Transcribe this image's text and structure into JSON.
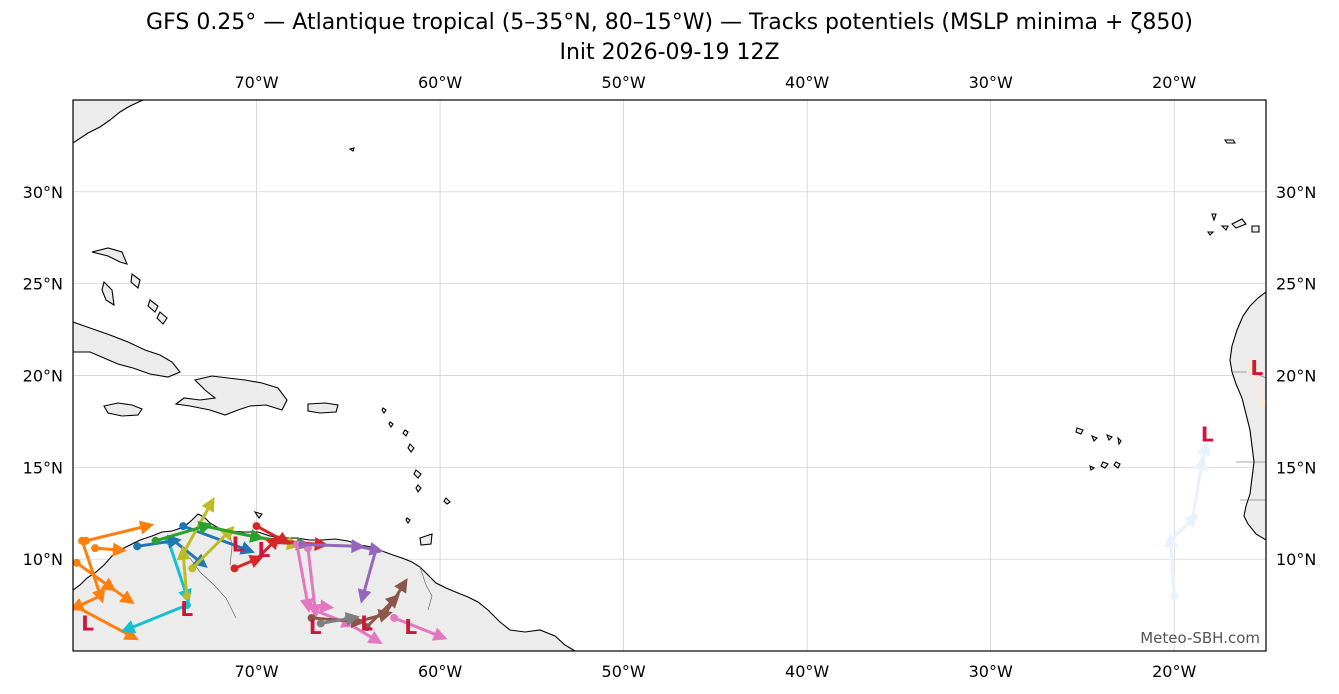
{
  "title": {
    "line1": "GFS 0.25° — Atlantique tropical (5–35°N, 80–15°W) — Tracks potentiels (MSLP minima + ζ850)",
    "line2": "Init 2026-09-19 12Z"
  },
  "credit": "Meteo-SBH.com",
  "low_symbol": "L",
  "map": {
    "lon_range": [
      -80,
      -15
    ],
    "lat_range": [
      5,
      35
    ],
    "lon_ticks": [
      {
        "value": -70,
        "label": "70°W"
      },
      {
        "value": -60,
        "label": "60°W"
      },
      {
        "value": -50,
        "label": "50°W"
      },
      {
        "value": -40,
        "label": "40°W"
      },
      {
        "value": -30,
        "label": "30°W"
      },
      {
        "value": -20,
        "label": "20°W"
      }
    ],
    "lat_ticks": [
      {
        "value": 10,
        "label": "10°N"
      },
      {
        "value": 15,
        "label": "15°N"
      },
      {
        "value": 20,
        "label": "20°N"
      },
      {
        "value": 25,
        "label": "25°N"
      },
      {
        "value": 30,
        "label": "30°N"
      }
    ],
    "colors": {
      "land": "#ececec",
      "coast": "#000000",
      "grid": "#cccccc",
      "low": "#d0143c"
    }
  },
  "tracks": [
    {
      "color": "#ff7f0e",
      "points": [
        [
          -79.3,
          11.0
        ],
        [
          -76.0,
          11.8
        ]
      ]
    },
    {
      "color": "#ff7f0e",
      "points": [
        [
          -79.5,
          11.0
        ],
        [
          -78.5,
          8.0
        ],
        [
          -79.8,
          7.4
        ],
        [
          -76.8,
          5.8
        ]
      ],
      "low": [
        -79.2,
        6.5
      ]
    },
    {
      "color": "#ff7f0e",
      "points": [
        [
          -79.8,
          9.8
        ],
        [
          -78.0,
          8.5
        ],
        [
          -77.0,
          7.8
        ]
      ]
    },
    {
      "color": "#ff7f0e",
      "points": [
        [
          -78.8,
          10.6
        ],
        [
          -77.5,
          10.5
        ]
      ]
    },
    {
      "color": "#17becf",
      "points": [
        [
          -73.8,
          7.5
        ],
        [
          -77.0,
          6.2
        ]
      ]
    },
    {
      "color": "#17becf",
      "points": [
        [
          -74.8,
          11.0
        ],
        [
          -73.8,
          8.0
        ]
      ],
      "low": [
        -73.8,
        7.3
      ]
    },
    {
      "color": "#1f77b4",
      "points": [
        [
          -76.5,
          10.7
        ],
        [
          -74.5,
          11.0
        ],
        [
          -73.0,
          9.8
        ]
      ]
    },
    {
      "color": "#1f77b4",
      "points": [
        [
          -74.0,
          11.8
        ],
        [
          -70.5,
          10.5
        ]
      ]
    },
    {
      "color": "#bcbd22",
      "points": [
        [
          -73.8,
          8.0
        ],
        [
          -74.0,
          10.3
        ],
        [
          -72.5,
          13.0
        ]
      ]
    },
    {
      "color": "#bcbd22",
      "points": [
        [
          -73.5,
          9.5
        ],
        [
          -71.5,
          11.5
        ],
        [
          -68.0,
          10.8
        ]
      ]
    },
    {
      "color": "#2ca02c",
      "points": [
        [
          -75.5,
          11.0
        ],
        [
          -72.8,
          11.8
        ],
        [
          -70.0,
          11.2
        ],
        [
          -67.5,
          10.8
        ]
      ]
    },
    {
      "color": "#d62728",
      "points": [
        [
          -71.2,
          9.5
        ],
        [
          -70.0,
          10.0
        ],
        [
          -69.0,
          11.0
        ],
        [
          -66.5,
          10.8
        ]
      ],
      "low": [
        -71.0,
        10.8
      ]
    },
    {
      "color": "#d62728",
      "points": [
        [
          -70.0,
          11.8
        ],
        [
          -68.5,
          11.0
        ]
      ],
      "low": [
        -69.6,
        10.5
      ]
    },
    {
      "color": "#e377c2",
      "points": [
        [
          -67.8,
          10.8
        ],
        [
          -67.2,
          7.5
        ],
        [
          -66.2,
          7.4
        ]
      ]
    },
    {
      "color": "#e377c2",
      "points": [
        [
          -67.2,
          10.6
        ],
        [
          -66.8,
          7.2
        ],
        [
          -65.0,
          6.5
        ],
        [
          -63.5,
          5.6
        ]
      ]
    },
    {
      "color": "#e377c2",
      "points": [
        [
          -62.5,
          6.8
        ],
        [
          -60.0,
          5.8
        ]
      ],
      "low": [
        -61.6,
        6.3
      ]
    },
    {
      "color": "#9467bd",
      "points": [
        [
          -67.5,
          10.8
        ],
        [
          -64.5,
          10.7
        ],
        [
          -63.5,
          10.5
        ],
        [
          -64.2,
          8.0
        ]
      ]
    },
    {
      "color": "#8c564b",
      "points": [
        [
          -67.0,
          6.8
        ],
        [
          -64.5,
          6.6
        ],
        [
          -63.0,
          7.0
        ],
        [
          -62.0,
          8.6
        ]
      ],
      "low": [
        -66.8,
        6.3
      ]
    },
    {
      "color": "#8c564b",
      "points": [
        [
          -64.0,
          6.3
        ],
        [
          -62.5,
          7.8
        ]
      ],
      "low": [
        -64.0,
        6.5
      ]
    },
    {
      "color": "#7f7f7f",
      "points": [
        [
          -66.5,
          6.5
        ],
        [
          -64.8,
          6.8
        ]
      ]
    },
    {
      "color": "#e8f2ff",
      "points": [
        [
          -20.0,
          8.0
        ],
        [
          -20.2,
          11.0
        ],
        [
          -19.0,
          12.2
        ],
        [
          -18.5,
          15.2
        ],
        [
          -18.3,
          16.0
        ]
      ],
      "low": [
        -18.2,
        16.8
      ]
    },
    {
      "color": "#fde9d5",
      "points": [
        [
          -15.2,
          18.5
        ],
        [
          -15.8,
          20.5
        ]
      ],
      "low": [
        -15.5,
        20.4
      ]
    }
  ]
}
